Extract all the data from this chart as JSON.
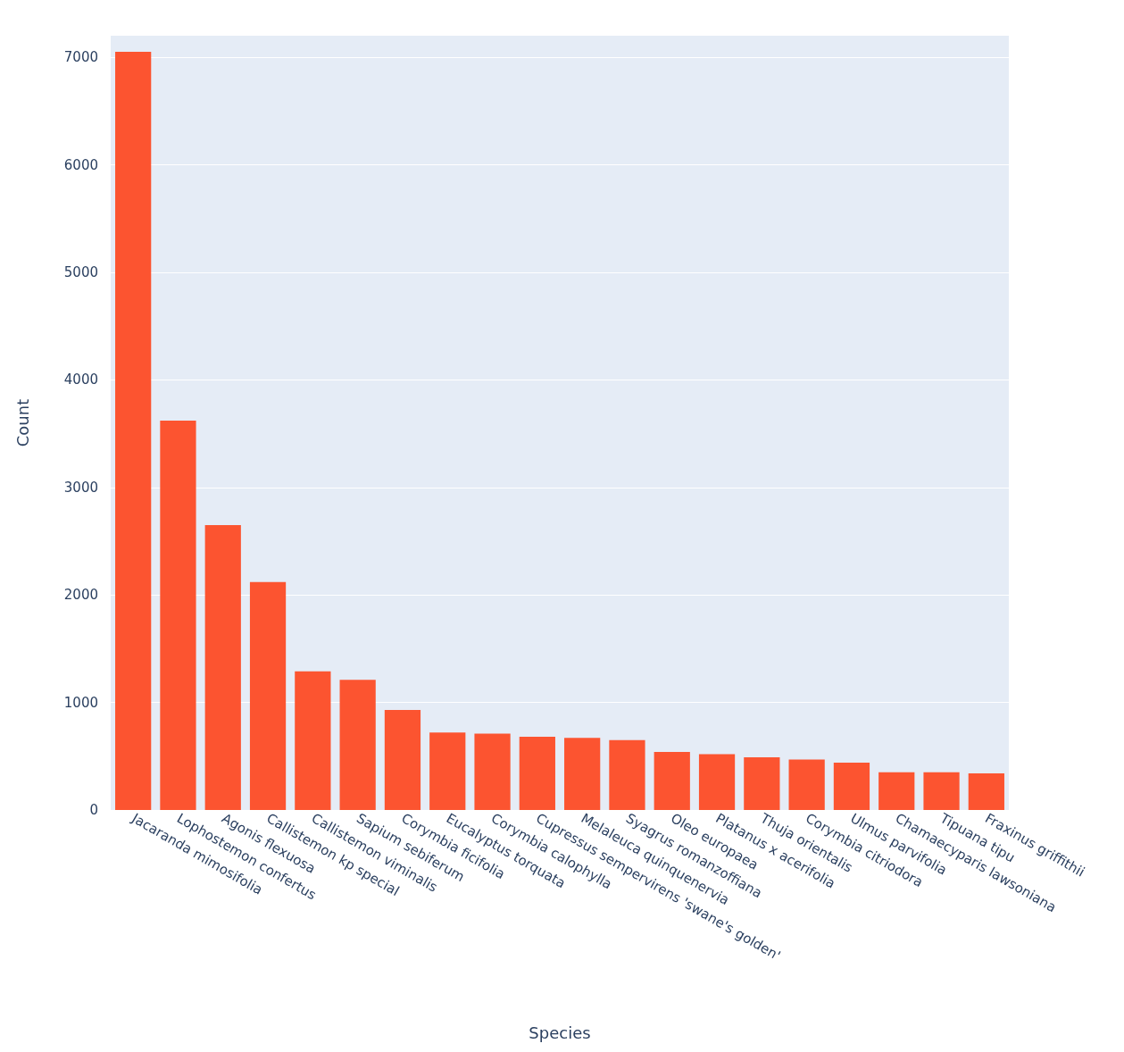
{
  "chart_data": {
    "type": "bar",
    "xlabel": "Species",
    "ylabel": "Count",
    "categories": [
      "Jacaranda mimosifolia",
      "Lophostemon confertus",
      "Agonis flexuosa",
      "Callistemon kp special",
      "Callistemon viminalis",
      "Sapium sebiferum",
      "Corymbia ficifolia",
      "Eucalyptus torquata",
      "Corymbia calophylla",
      "Cupressus sempervirens 'swane's golden'",
      "Melaleuca quinquenervia",
      "Syagrus romanzoffiana",
      "Oleo europaea",
      "Platanus x acerifolia",
      "Thuja orientalis",
      "Corymbia citriodora",
      "Ulmus parvifolia",
      "Chamaecyparis lawsoniana",
      "Tipuana tipu",
      "Fraxinus griffithii"
    ],
    "values": [
      7050,
      3620,
      2650,
      2120,
      1290,
      1210,
      930,
      720,
      710,
      680,
      670,
      650,
      540,
      520,
      490,
      470,
      440,
      350,
      350,
      340
    ],
    "color": "#fc5430",
    "ylim": [
      0,
      7200
    ],
    "yticks": [
      0,
      1000,
      2000,
      3000,
      4000,
      5000,
      6000,
      7000
    ],
    "grid": "y"
  }
}
